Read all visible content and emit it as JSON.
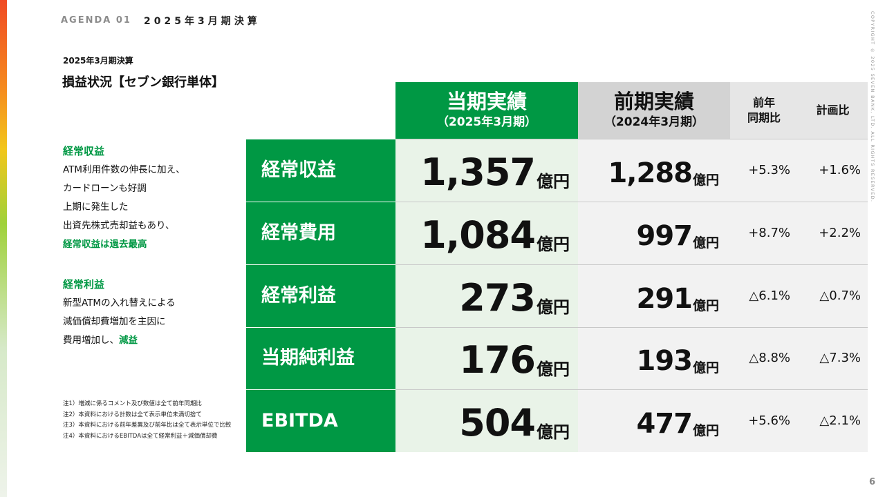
{
  "header": {
    "agenda_label": "AGENDA 01",
    "agenda_title": "2025年3月期決算",
    "copyright": "COPYRIGHT © 2025 SEVEN BANK, LTD. ALL RIGHTS RESERVED.",
    "page_number": "6"
  },
  "section": {
    "subtitle": "2025年3月期決算",
    "title": "損益状況【セブン銀行単体】"
  },
  "notes": {
    "revenue": {
      "heading": "経常収益",
      "lines": [
        "ATM利用件数の伸長に加え、",
        "カードローンも好調",
        "上期に発生した",
        "出資先株式売却益もあり、"
      ],
      "highlight": "経常収益は過去最高"
    },
    "profit": {
      "heading": "経常利益",
      "lines": [
        "新型ATMの入れ替えによる",
        "減価償却費増加を主因に"
      ],
      "last_line_prefix": "費用増加し、",
      "last_line_highlight": "減益"
    }
  },
  "footnotes": [
    "注1）増減に係るコメント及び数値は全て前年同期比",
    "注2）本資料における計数は全て表示単位未満切捨て",
    "注3）本資料における前年差異及び前年比は全て表示単位で比較",
    "注4）本資料におけるEBITDAは全て経常利益＋減価償却費"
  ],
  "table": {
    "columns": {
      "current_title": "当期実績",
      "current_period": "（2025年3月期）",
      "prev_title": "前期実績",
      "prev_period": "（2024年3月期）",
      "yoy_line1": "前年",
      "yoy_line2": "同期比",
      "plan": "計画比"
    },
    "unit": "億円",
    "rows": [
      {
        "label": "経常収益",
        "current": "1,357",
        "prev": "1,288",
        "yoy": "+5.3%",
        "plan": "+1.6%"
      },
      {
        "label": "経常費用",
        "current": "1,084",
        "prev": "997",
        "yoy": "+8.7%",
        "plan": "+2.2%"
      },
      {
        "label": "経常利益",
        "current": "273",
        "prev": "291",
        "yoy": "△6.1%",
        "plan": "△0.7%"
      },
      {
        "label": "当期純利益",
        "current": "176",
        "prev": "193",
        "yoy": "△8.8%",
        "plan": "△7.3%"
      },
      {
        "label": "EBITDA",
        "current": "504",
        "prev": "477",
        "yoy": "+5.6%",
        "plan": "△2.1%"
      }
    ]
  },
  "colors": {
    "brand_green": "#009844",
    "light_green": "#e9f3e8",
    "gray_header": "#d3d3d3"
  }
}
